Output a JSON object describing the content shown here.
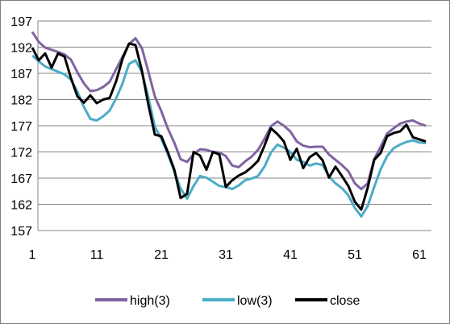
{
  "chart_data": {
    "type": "line",
    "title": "",
    "xlabel": "",
    "ylabel": "",
    "x": [
      1,
      2,
      3,
      4,
      5,
      6,
      7,
      8,
      9,
      10,
      11,
      12,
      13,
      14,
      15,
      16,
      17,
      18,
      19,
      20,
      21,
      22,
      23,
      24,
      25,
      26,
      27,
      28,
      29,
      30,
      31,
      32,
      33,
      34,
      35,
      36,
      37,
      38,
      39,
      40,
      41,
      42,
      43,
      44,
      45,
      46,
      47,
      48,
      49,
      50,
      51,
      52,
      53,
      54,
      55,
      56,
      57,
      58,
      59,
      60,
      61,
      62
    ],
    "xticks": [
      "1",
      "11",
      "21",
      "31",
      "41",
      "51",
      "61"
    ],
    "xtick_values": [
      1,
      11,
      21,
      31,
      41,
      51,
      61
    ],
    "ylim": [
      157,
      197
    ],
    "yticks": [
      "157",
      "162",
      "167",
      "172",
      "177",
      "182",
      "187",
      "192",
      "197"
    ],
    "yticks_values": [
      157,
      162,
      167,
      172,
      177,
      182,
      187,
      192,
      197
    ],
    "grid": "horizontal",
    "legend_position": "bottom",
    "series": [
      {
        "name": "high(3)",
        "color": "#8064a2",
        "values": [
          194.9,
          193.0,
          191.9,
          191.5,
          191.1,
          190.6,
          189.6,
          187.2,
          185.1,
          183.6,
          183.8,
          184.4,
          185.4,
          187.8,
          190.2,
          192.6,
          193.7,
          191.8,
          187.3,
          182.6,
          179.8,
          176.5,
          173.8,
          170.6,
          170.1,
          171.6,
          172.5,
          172.4,
          172.0,
          171.9,
          171.2,
          169.4,
          169.1,
          170.2,
          171.1,
          172.4,
          174.5,
          176.9,
          177.8,
          177.0,
          175.9,
          174.0,
          173.2,
          172.9,
          173.0,
          173.0,
          171.5,
          170.5,
          169.5,
          168.3,
          166.0,
          164.9,
          166.0,
          170.6,
          173.0,
          175.5,
          176.5,
          177.4,
          177.8,
          178.0,
          177.4,
          177.0
        ]
      },
      {
        "name": "low(3)",
        "color": "#4bacc6",
        "values": [
          190.4,
          189.3,
          188.3,
          187.8,
          187.3,
          186.8,
          185.8,
          183.5,
          180.6,
          178.3,
          178.0,
          178.8,
          179.9,
          182.2,
          185.1,
          188.8,
          189.5,
          187.2,
          182.4,
          176.8,
          174.5,
          171.6,
          168.3,
          165.0,
          163.1,
          165.5,
          167.4,
          167.1,
          166.3,
          165.5,
          165.3,
          164.9,
          165.6,
          166.6,
          166.9,
          167.4,
          169.2,
          171.9,
          173.4,
          172.8,
          172.0,
          170.5,
          170.1,
          169.4,
          169.8,
          169.5,
          167.3,
          166.0,
          165.1,
          163.7,
          161.3,
          159.7,
          161.7,
          165.3,
          168.7,
          171.2,
          172.7,
          173.4,
          173.9,
          174.2,
          173.8,
          173.7
        ]
      },
      {
        "name": "close",
        "color": "#000000",
        "values": [
          191.9,
          189.5,
          190.8,
          188.1,
          190.8,
          190.2,
          186.1,
          182.6,
          181.4,
          182.8,
          181.3,
          182.0,
          182.3,
          185.5,
          189.8,
          192.7,
          192.4,
          187.5,
          181.0,
          175.3,
          175.0,
          172.0,
          168.7,
          163.2,
          164.0,
          172.0,
          171.3,
          168.6,
          172.0,
          171.5,
          165.3,
          166.6,
          167.5,
          168.1,
          169.1,
          170.3,
          173.2,
          176.5,
          175.4,
          174.0,
          170.5,
          172.6,
          168.9,
          171.0,
          171.8,
          170.4,
          167.1,
          169.2,
          167.4,
          165.5,
          162.5,
          161.0,
          165.2,
          170.5,
          171.8,
          175.0,
          175.6,
          175.9,
          177.2,
          174.8,
          174.4,
          174.0
        ]
      }
    ]
  }
}
